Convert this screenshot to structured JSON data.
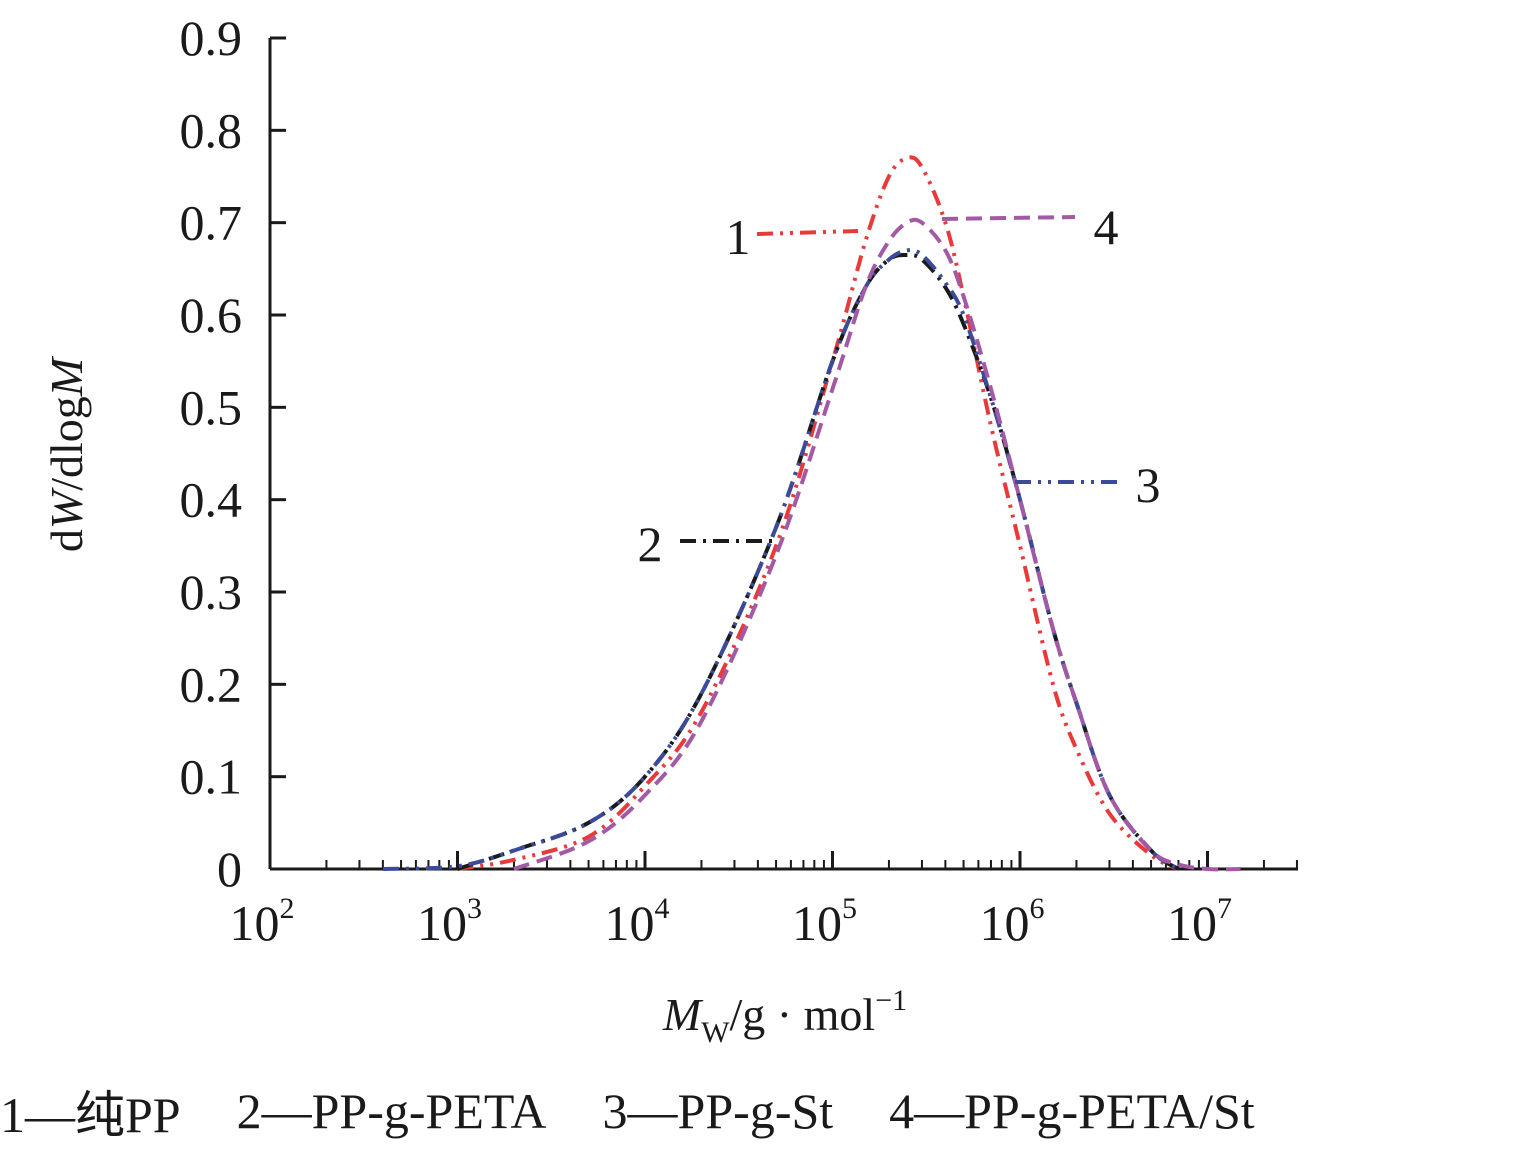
{
  "chart_data": {
    "type": "line",
    "x_scale": "log",
    "xlim": [
      100,
      30000000
    ],
    "ylim": [
      0,
      0.9
    ],
    "grid": false,
    "legend_placement": "bottom",
    "xlabel": {
      "main": "M",
      "sub": "W",
      "rest": "/g · mol",
      "sup": "−1"
    },
    "ylabel": {
      "d": "d",
      "W": "W",
      "slash": "/dlog",
      "M": "M"
    },
    "x_ticks": [
      {
        "value": 100,
        "base": "10",
        "exp": "2"
      },
      {
        "value": 1000,
        "base": "10",
        "exp": "3"
      },
      {
        "value": 10000,
        "base": "10",
        "exp": "4"
      },
      {
        "value": 100000,
        "base": "10",
        "exp": "5"
      },
      {
        "value": 1000000,
        "base": "10",
        "exp": "6"
      },
      {
        "value": 10000000,
        "base": "10",
        "exp": "7"
      }
    ],
    "y_ticks": [
      "0",
      "0.1",
      "0.2",
      "0.3",
      "0.4",
      "0.5",
      "0.6",
      "0.7",
      "0.8",
      "0.9"
    ],
    "series": [
      {
        "id": "1",
        "name": "纯PP",
        "color": "#e83a3a",
        "dash": "dash-dot-dot",
        "x": [
          1000,
          2000,
          5000,
          10000,
          20000,
          50000,
          100000,
          150000,
          200000,
          250000,
          300000,
          400000,
          500000,
          700000,
          1000000,
          1500000,
          2000000,
          3000000,
          5000000,
          7000000
        ],
        "y": [
          0,
          0.01,
          0.035,
          0.09,
          0.17,
          0.35,
          0.55,
          0.68,
          0.75,
          0.77,
          0.76,
          0.7,
          0.62,
          0.48,
          0.35,
          0.2,
          0.13,
          0.06,
          0.015,
          0
        ]
      },
      {
        "id": "2",
        "name": "PP-g-PETA",
        "color": "#1a1a1a",
        "dash": "dash-dot",
        "x": [
          1000,
          2000,
          5000,
          10000,
          20000,
          50000,
          100000,
          150000,
          200000,
          250000,
          300000,
          400000,
          500000,
          700000,
          1000000,
          1500000,
          2000000,
          3000000,
          5000000,
          7000000
        ],
        "y": [
          0,
          0.02,
          0.05,
          0.1,
          0.19,
          0.37,
          0.55,
          0.63,
          0.66,
          0.665,
          0.66,
          0.63,
          0.59,
          0.51,
          0.4,
          0.26,
          0.18,
          0.08,
          0.02,
          0
        ]
      },
      {
        "id": "3",
        "name": "PP-g-St",
        "color": "#3b4b9a",
        "dash": "dash-dot-dot",
        "x": [
          400,
          1000,
          2000,
          5000,
          10000,
          20000,
          50000,
          100000,
          150000,
          200000,
          250000,
          300000,
          400000,
          500000,
          700000,
          1000000,
          1500000,
          2000000,
          3000000,
          5000000,
          7000000
        ],
        "y": [
          0,
          0.003,
          0.02,
          0.05,
          0.1,
          0.19,
          0.37,
          0.55,
          0.63,
          0.66,
          0.67,
          0.665,
          0.635,
          0.6,
          0.51,
          0.4,
          0.26,
          0.18,
          0.08,
          0.02,
          0
        ]
      },
      {
        "id": "4",
        "name": "PP-g-PETA/St",
        "color": "#a35aa5",
        "dash": "dash",
        "x": [
          2000,
          5000,
          10000,
          20000,
          50000,
          100000,
          150000,
          200000,
          250000,
          300000,
          400000,
          500000,
          700000,
          1000000,
          1500000,
          2000000,
          3000000,
          5000000,
          7000000,
          10000000,
          15000000
        ],
        "y": [
          0,
          0.03,
          0.08,
          0.16,
          0.34,
          0.52,
          0.63,
          0.68,
          0.7,
          0.7,
          0.67,
          0.62,
          0.52,
          0.4,
          0.26,
          0.18,
          0.08,
          0.02,
          0.005,
          0,
          0
        ]
      }
    ],
    "callouts": [
      {
        "label": "1",
        "series": "1"
      },
      {
        "label": "2",
        "series": "2"
      },
      {
        "label": "3",
        "series": "3"
      },
      {
        "label": "4",
        "series": "4"
      }
    ],
    "legend": [
      "1—纯PP",
      "2—PP-g-PETA",
      "3—PP-g-St",
      "4—PP-g-PETA/St"
    ]
  }
}
